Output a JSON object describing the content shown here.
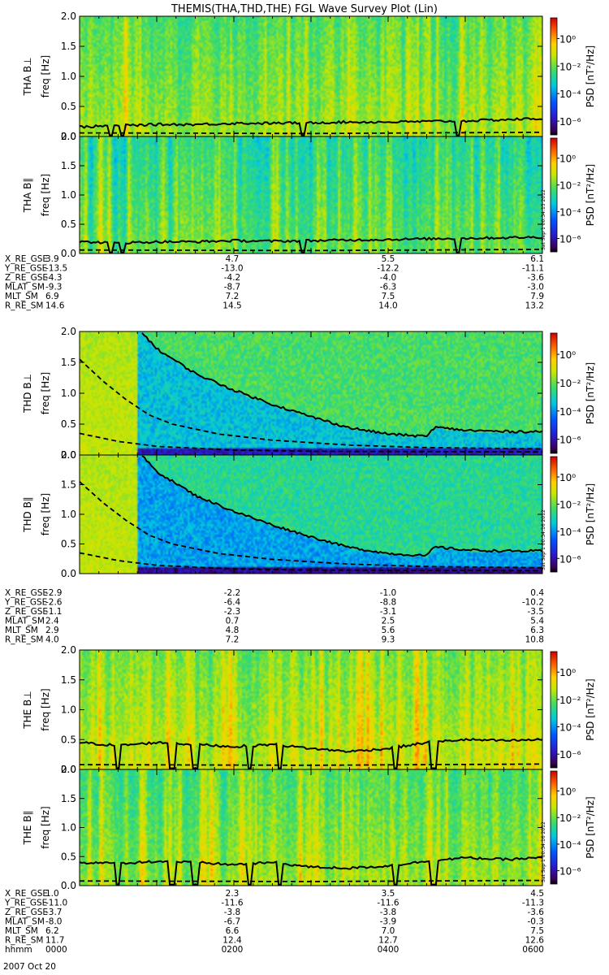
{
  "title": "THEMIS(THA,THD,THE) FGL Wave Survey Plot (Lin)",
  "colorbar": {
    "label": "PSD [nT²/Hz]",
    "ticks": [
      "10⁰",
      "10⁻²",
      "10⁻⁴",
      "10⁻⁶"
    ],
    "tick_log_values": [
      0,
      -2,
      -4,
      -6
    ],
    "log_range": [
      -7,
      1.5
    ]
  },
  "chart_data": [
    {
      "type": "heatmap",
      "panel": "THA B⊥",
      "ylabel_probe": "THA B⊥",
      "ylabel": "freq [Hz]",
      "yticks": [
        "0.0",
        "0.5",
        "1.0",
        "1.5",
        "2.0"
      ],
      "ylim": [
        0,
        2.0
      ],
      "x_range_hours": [
        0,
        6
      ],
      "base_log_psd": -1.6,
      "solid_line_hz": [
        [
          0,
          0.16
        ],
        [
          0.5,
          0.18
        ],
        [
          1.0,
          0.2
        ],
        [
          1.5,
          0.2
        ],
        [
          2.0,
          0.22
        ],
        [
          2.5,
          0.22
        ],
        [
          3.0,
          0.23
        ],
        [
          3.5,
          0.24
        ],
        [
          4.0,
          0.24
        ],
        [
          4.5,
          0.25
        ],
        [
          5.0,
          0.26
        ],
        [
          5.5,
          0.28
        ],
        [
          6.0,
          0.3
        ]
      ],
      "dashed_line_hz": [
        [
          0,
          0.06
        ],
        [
          3,
          0.05
        ],
        [
          6,
          0.07
        ]
      ],
      "dips_hours": [
        0.4,
        0.55,
        2.9,
        4.9
      ],
      "stamp": ""
    },
    {
      "type": "heatmap",
      "panel": "THA B∥",
      "ylabel_probe": "THA B∥",
      "ylabel": "freq [Hz]",
      "yticks": [
        "0.0",
        "0.5",
        "1.0",
        "1.5",
        "2.0"
      ],
      "ylim": [
        0,
        2.0
      ],
      "x_range_hours": [
        0,
        6
      ],
      "base_log_psd": -2.2,
      "solid_line_hz": [
        [
          0,
          0.2
        ],
        [
          0.5,
          0.18
        ],
        [
          1.0,
          0.2
        ],
        [
          1.5,
          0.2
        ],
        [
          2.0,
          0.22
        ],
        [
          2.5,
          0.21
        ],
        [
          3.0,
          0.22
        ],
        [
          3.5,
          0.23
        ],
        [
          4.0,
          0.24
        ],
        [
          4.5,
          0.25
        ],
        [
          5.0,
          0.26
        ],
        [
          5.5,
          0.27
        ],
        [
          6.0,
          0.28
        ]
      ],
      "dashed_line_hz": [
        [
          0,
          0.06
        ],
        [
          3,
          0.05
        ],
        [
          6,
          0.07
        ]
      ],
      "dips_hours": [
        0.4,
        0.55,
        2.9,
        4.9
      ],
      "stamp": "Sat Sep 1 00:34:15 2012"
    },
    {
      "type": "heatmap",
      "panel": "THD B⊥",
      "ylabel_probe": "THD B⊥",
      "ylabel": "freq [Hz]",
      "yticks": [
        "0.0",
        "0.5",
        "1.0",
        "1.5",
        "2.0"
      ],
      "ylim": [
        0,
        2.0
      ],
      "x_range_hours": [
        0,
        6
      ],
      "base_log_psd": -2.6,
      "solid_line_hz": [
        [
          0.8,
          2.0
        ],
        [
          1.0,
          1.72
        ],
        [
          1.5,
          1.32
        ],
        [
          2.0,
          1.05
        ],
        [
          2.5,
          0.82
        ],
        [
          3.0,
          0.62
        ],
        [
          3.5,
          0.44
        ],
        [
          4.0,
          0.34
        ],
        [
          4.5,
          0.3
        ],
        [
          4.6,
          0.45
        ],
        [
          5.0,
          0.4
        ],
        [
          5.5,
          0.38
        ],
        [
          6.0,
          0.38
        ]
      ],
      "dashed_line_hz": [
        [
          0,
          1.55
        ],
        [
          0.3,
          1.2
        ],
        [
          0.6,
          0.9
        ],
        [
          0.9,
          0.65
        ],
        [
          1.2,
          0.5
        ],
        [
          1.8,
          0.34
        ],
        [
          2.5,
          0.24
        ],
        [
          3.5,
          0.16
        ],
        [
          4.5,
          0.12
        ],
        [
          6.0,
          0.1
        ]
      ],
      "lower_dashed_hz": [
        [
          0,
          0.35
        ],
        [
          0.5,
          0.22
        ],
        [
          1.0,
          0.14
        ],
        [
          2.0,
          0.08
        ],
        [
          3.0,
          0.06
        ],
        [
          6.0,
          0.05
        ]
      ],
      "dips_hours": [],
      "stamp": ""
    },
    {
      "type": "heatmap",
      "panel": "THD B∥",
      "ylabel_probe": "THD B∥",
      "ylabel": "freq [Hz]",
      "yticks": [
        "0.0",
        "0.5",
        "1.0",
        "1.5",
        "2.0"
      ],
      "ylim": [
        0,
        2.0
      ],
      "x_range_hours": [
        0,
        6
      ],
      "base_log_psd": -3.0,
      "solid_line_hz": [
        [
          0.8,
          2.0
        ],
        [
          1.0,
          1.72
        ],
        [
          1.5,
          1.32
        ],
        [
          2.0,
          1.05
        ],
        [
          2.5,
          0.82
        ],
        [
          3.0,
          0.62
        ],
        [
          3.5,
          0.44
        ],
        [
          4.0,
          0.34
        ],
        [
          4.5,
          0.3
        ],
        [
          4.6,
          0.45
        ],
        [
          5.0,
          0.4
        ],
        [
          5.5,
          0.38
        ],
        [
          6.0,
          0.38
        ]
      ],
      "dashed_line_hz": [
        [
          0,
          1.55
        ],
        [
          0.3,
          1.2
        ],
        [
          0.6,
          0.9
        ],
        [
          0.9,
          0.65
        ],
        [
          1.2,
          0.5
        ],
        [
          1.8,
          0.34
        ],
        [
          2.5,
          0.24
        ],
        [
          3.5,
          0.16
        ],
        [
          4.5,
          0.12
        ],
        [
          6.0,
          0.1
        ]
      ],
      "lower_dashed_hz": [
        [
          0,
          0.35
        ],
        [
          0.5,
          0.22
        ],
        [
          1.0,
          0.14
        ],
        [
          2.0,
          0.08
        ],
        [
          3.0,
          0.06
        ],
        [
          6.0,
          0.05
        ]
      ],
      "dips_hours": [],
      "stamp": "Sat Sep 1 00:34:16 2012"
    },
    {
      "type": "heatmap",
      "panel": "THE B⊥",
      "ylabel_probe": "THE B⊥",
      "ylabel": "freq [Hz]",
      "yticks": [
        "0.0",
        "0.5",
        "1.0",
        "1.5",
        "2.0"
      ],
      "ylim": [
        0,
        2.0
      ],
      "x_range_hours": [
        0,
        6
      ],
      "base_log_psd": -1.2,
      "solid_line_hz": [
        [
          0,
          0.45
        ],
        [
          0.5,
          0.4
        ],
        [
          1.0,
          0.45
        ],
        [
          1.5,
          0.42
        ],
        [
          2.0,
          0.38
        ],
        [
          2.5,
          0.42
        ],
        [
          3.0,
          0.35
        ],
        [
          3.5,
          0.3
        ],
        [
          4.0,
          0.35
        ],
        [
          4.5,
          0.45
        ],
        [
          5.0,
          0.5
        ],
        [
          5.5,
          0.48
        ],
        [
          6.0,
          0.5
        ]
      ],
      "dashed_line_hz": [
        [
          0,
          0.08
        ],
        [
          3,
          0.07
        ],
        [
          6,
          0.09
        ]
      ],
      "dips_hours": [
        0.5,
        1.2,
        1.5,
        2.2,
        2.6,
        4.1,
        4.6
      ],
      "stamp": ""
    },
    {
      "type": "heatmap",
      "panel": "THE B∥",
      "ylabel_probe": "THE B∥",
      "ylabel": "freq [Hz]",
      "yticks": [
        "0.0",
        "0.5",
        "1.0",
        "1.5",
        "2.0"
      ],
      "ylim": [
        0,
        2.0
      ],
      "x_range_hours": [
        0,
        6
      ],
      "base_log_psd": -1.6,
      "solid_line_hz": [
        [
          0,
          0.4
        ],
        [
          0.5,
          0.38
        ],
        [
          1.0,
          0.42
        ],
        [
          1.5,
          0.4
        ],
        [
          2.0,
          0.36
        ],
        [
          2.5,
          0.4
        ],
        [
          3.0,
          0.32
        ],
        [
          3.5,
          0.3
        ],
        [
          4.0,
          0.34
        ],
        [
          4.5,
          0.42
        ],
        [
          5.0,
          0.48
        ],
        [
          5.5,
          0.45
        ],
        [
          6.0,
          0.48
        ]
      ],
      "dashed_line_hz": [
        [
          0,
          0.08
        ],
        [
          3,
          0.07
        ],
        [
          6,
          0.09
        ]
      ],
      "dips_hours": [
        0.5,
        1.2,
        1.5,
        2.2,
        2.6,
        4.1,
        4.6
      ],
      "stamp": "Sat Sep 1 00:34:16 2012"
    }
  ],
  "ephemeris": [
    {
      "rows": [
        {
          "label": "X_RE_GSE",
          "values": [
            "3.9",
            "4.7",
            "5.5",
            "6.1"
          ]
        },
        {
          "label": "Y_RE_GSE",
          "values": [
            "-13.5",
            "-13.0",
            "-12.2",
            "-11.1"
          ]
        },
        {
          "label": "Z_RE_GSE",
          "values": [
            "-4.3",
            "-4.2",
            "-4.0",
            "-3.6"
          ]
        },
        {
          "label": "MLAT_SM",
          "values": [
            "-9.3",
            "-8.7",
            "-6.3",
            "-3.0"
          ]
        },
        {
          "label": "MLT_SM",
          "values": [
            "6.9",
            "7.2",
            "7.5",
            "7.9"
          ]
        },
        {
          "label": "R_RE_SM",
          "values": [
            "14.6",
            "14.5",
            "14.0",
            "13.2"
          ]
        }
      ]
    },
    {
      "rows": [
        {
          "label": "X_RE_GSE",
          "values": [
            "-2.9",
            "-2.2",
            "-1.0",
            "0.4"
          ]
        },
        {
          "label": "Y_RE_GSE",
          "values": [
            "-2.6",
            "-6.4",
            "-8.8",
            "-10.2"
          ]
        },
        {
          "label": "Z_RE_GSE",
          "values": [
            "-1.1",
            "-2.3",
            "-3.1",
            "-3.5"
          ]
        },
        {
          "label": "MLAT_SM",
          "values": [
            "2.4",
            "0.7",
            "2.5",
            "5.4"
          ]
        },
        {
          "label": "MLT_SM",
          "values": [
            "2.9",
            "4.8",
            "5.6",
            "6.3"
          ]
        },
        {
          "label": "R_RE_SM",
          "values": [
            "4.0",
            "7.2",
            "9.3",
            "10.8"
          ]
        }
      ]
    },
    {
      "rows": [
        {
          "label": "X_RE_GSE",
          "values": [
            "1.0",
            "2.3",
            "3.5",
            "4.5"
          ]
        },
        {
          "label": "Y_RE_GSE",
          "values": [
            "-11.0",
            "-11.6",
            "-11.6",
            "-11.3"
          ]
        },
        {
          "label": "Z_RE_GSE",
          "values": [
            "-3.7",
            "-3.8",
            "-3.8",
            "-3.6"
          ]
        },
        {
          "label": "MLAT_SM",
          "values": [
            "-8.0",
            "-6.7",
            "-3.9",
            "-0.3"
          ]
        },
        {
          "label": "MLT_SM",
          "values": [
            "6.2",
            "6.6",
            "7.0",
            "7.5"
          ]
        },
        {
          "label": "R_RE_SM",
          "values": [
            "11.7",
            "12.4",
            "12.7",
            "12.6"
          ]
        },
        {
          "label": "hhmm",
          "values": [
            "0000",
            "0200",
            "0400",
            "0600"
          ]
        }
      ]
    }
  ],
  "date_label": "2007 Oct 20"
}
